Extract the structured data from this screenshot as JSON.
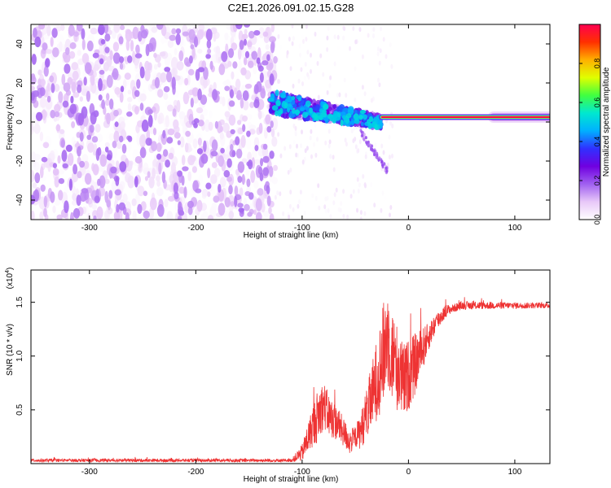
{
  "title": "C2E1.2026.091.02.15.G28",
  "chart_data": [
    {
      "type": "heatmap",
      "xlabel": "Height of straight line (km)",
      "ylabel": "Frequency (Hz)",
      "xlim": [
        -355,
        133
      ],
      "ylim": [
        -50,
        50
      ],
      "xticks": [
        -300,
        -200,
        -100,
        0,
        100
      ],
      "yticks": [
        -40,
        -20,
        0,
        20,
        40
      ],
      "colorbar": {
        "label": "Normalized spectral amplitude",
        "range": [
          0,
          1
        ],
        "ticks": [
          0.0,
          0.2,
          0.4,
          0.6,
          0.8
        ],
        "tick_labels": [
          "0.0",
          "0.2",
          "0.4",
          "0.6",
          "0.8"
        ],
        "colors": [
          "#ffffff",
          "#e8c8f8",
          "#a060f0",
          "#7000e0",
          "#3030ff",
          "#00b0ff",
          "#00e8d0",
          "#40ff40",
          "#e0ff00",
          "#ffb000",
          "#ff3000",
          "#ff0050"
        ]
      },
      "features": {
        "signal_line": {
          "x_start": -25,
          "x_end": 133,
          "freq": 2.5,
          "amplitude": 1.0,
          "halo_x_start": 80,
          "halo_x_end": 133
        },
        "noise_region": {
          "x_start": -355,
          "x_end": -125,
          "typical_amplitude": 0.1
        },
        "transition_band": {
          "x_start": -130,
          "x_end": -25,
          "freq_start": 10,
          "freq_end": 0,
          "peak_amplitude": 0.45
        }
      }
    },
    {
      "type": "line",
      "xlabel": "Height of straight line (km)",
      "ylabel": "SNR (10 * v/v)",
      "y_multiplier": "(x10",
      "y_multiplier_exp": "4",
      "y_multiplier_close": ")",
      "xlim": [
        -355,
        133
      ],
      "ylim": [
        0,
        1.8
      ],
      "xticks": [
        -300,
        -200,
        -100,
        0,
        100
      ],
      "yticks": [
        0.5,
        1.0,
        1.5
      ],
      "ytick_labels": [
        "0.5",
        "1.0",
        "1.5"
      ],
      "color": "#ee3333",
      "segments": [
        {
          "x": -355,
          "y": 0.03
        },
        {
          "x": -110,
          "y": 0.03
        },
        {
          "x": -100,
          "y": 0.1
        },
        {
          "x": -90,
          "y": 0.35
        },
        {
          "x": -80,
          "y": 0.55
        },
        {
          "x": -75,
          "y": 0.45
        },
        {
          "x": -65,
          "y": 0.35
        },
        {
          "x": -55,
          "y": 0.2
        },
        {
          "x": -45,
          "y": 0.3
        },
        {
          "x": -35,
          "y": 0.6
        },
        {
          "x": -25,
          "y": 0.95
        },
        {
          "x": -20,
          "y": 1.2
        },
        {
          "x": -15,
          "y": 1.0
        },
        {
          "x": -5,
          "y": 0.75
        },
        {
          "x": 5,
          "y": 0.9
        },
        {
          "x": 15,
          "y": 1.1
        },
        {
          "x": 25,
          "y": 1.3
        },
        {
          "x": 35,
          "y": 1.42
        },
        {
          "x": 50,
          "y": 1.47
        },
        {
          "x": 80,
          "y": 1.47
        },
        {
          "x": 133,
          "y": 1.47
        }
      ],
      "noise_amp": [
        {
          "x": -355,
          "a": 0.015
        },
        {
          "x": -110,
          "a": 0.015
        },
        {
          "x": -100,
          "a": 0.08
        },
        {
          "x": -85,
          "a": 0.25
        },
        {
          "x": -65,
          "a": 0.15
        },
        {
          "x": -50,
          "a": 0.1
        },
        {
          "x": -35,
          "a": 0.3
        },
        {
          "x": -22,
          "a": 0.5
        },
        {
          "x": -10,
          "a": 0.4
        },
        {
          "x": 5,
          "a": 0.3
        },
        {
          "x": 20,
          "a": 0.12
        },
        {
          "x": 40,
          "a": 0.04
        },
        {
          "x": 133,
          "a": 0.025
        }
      ]
    }
  ]
}
